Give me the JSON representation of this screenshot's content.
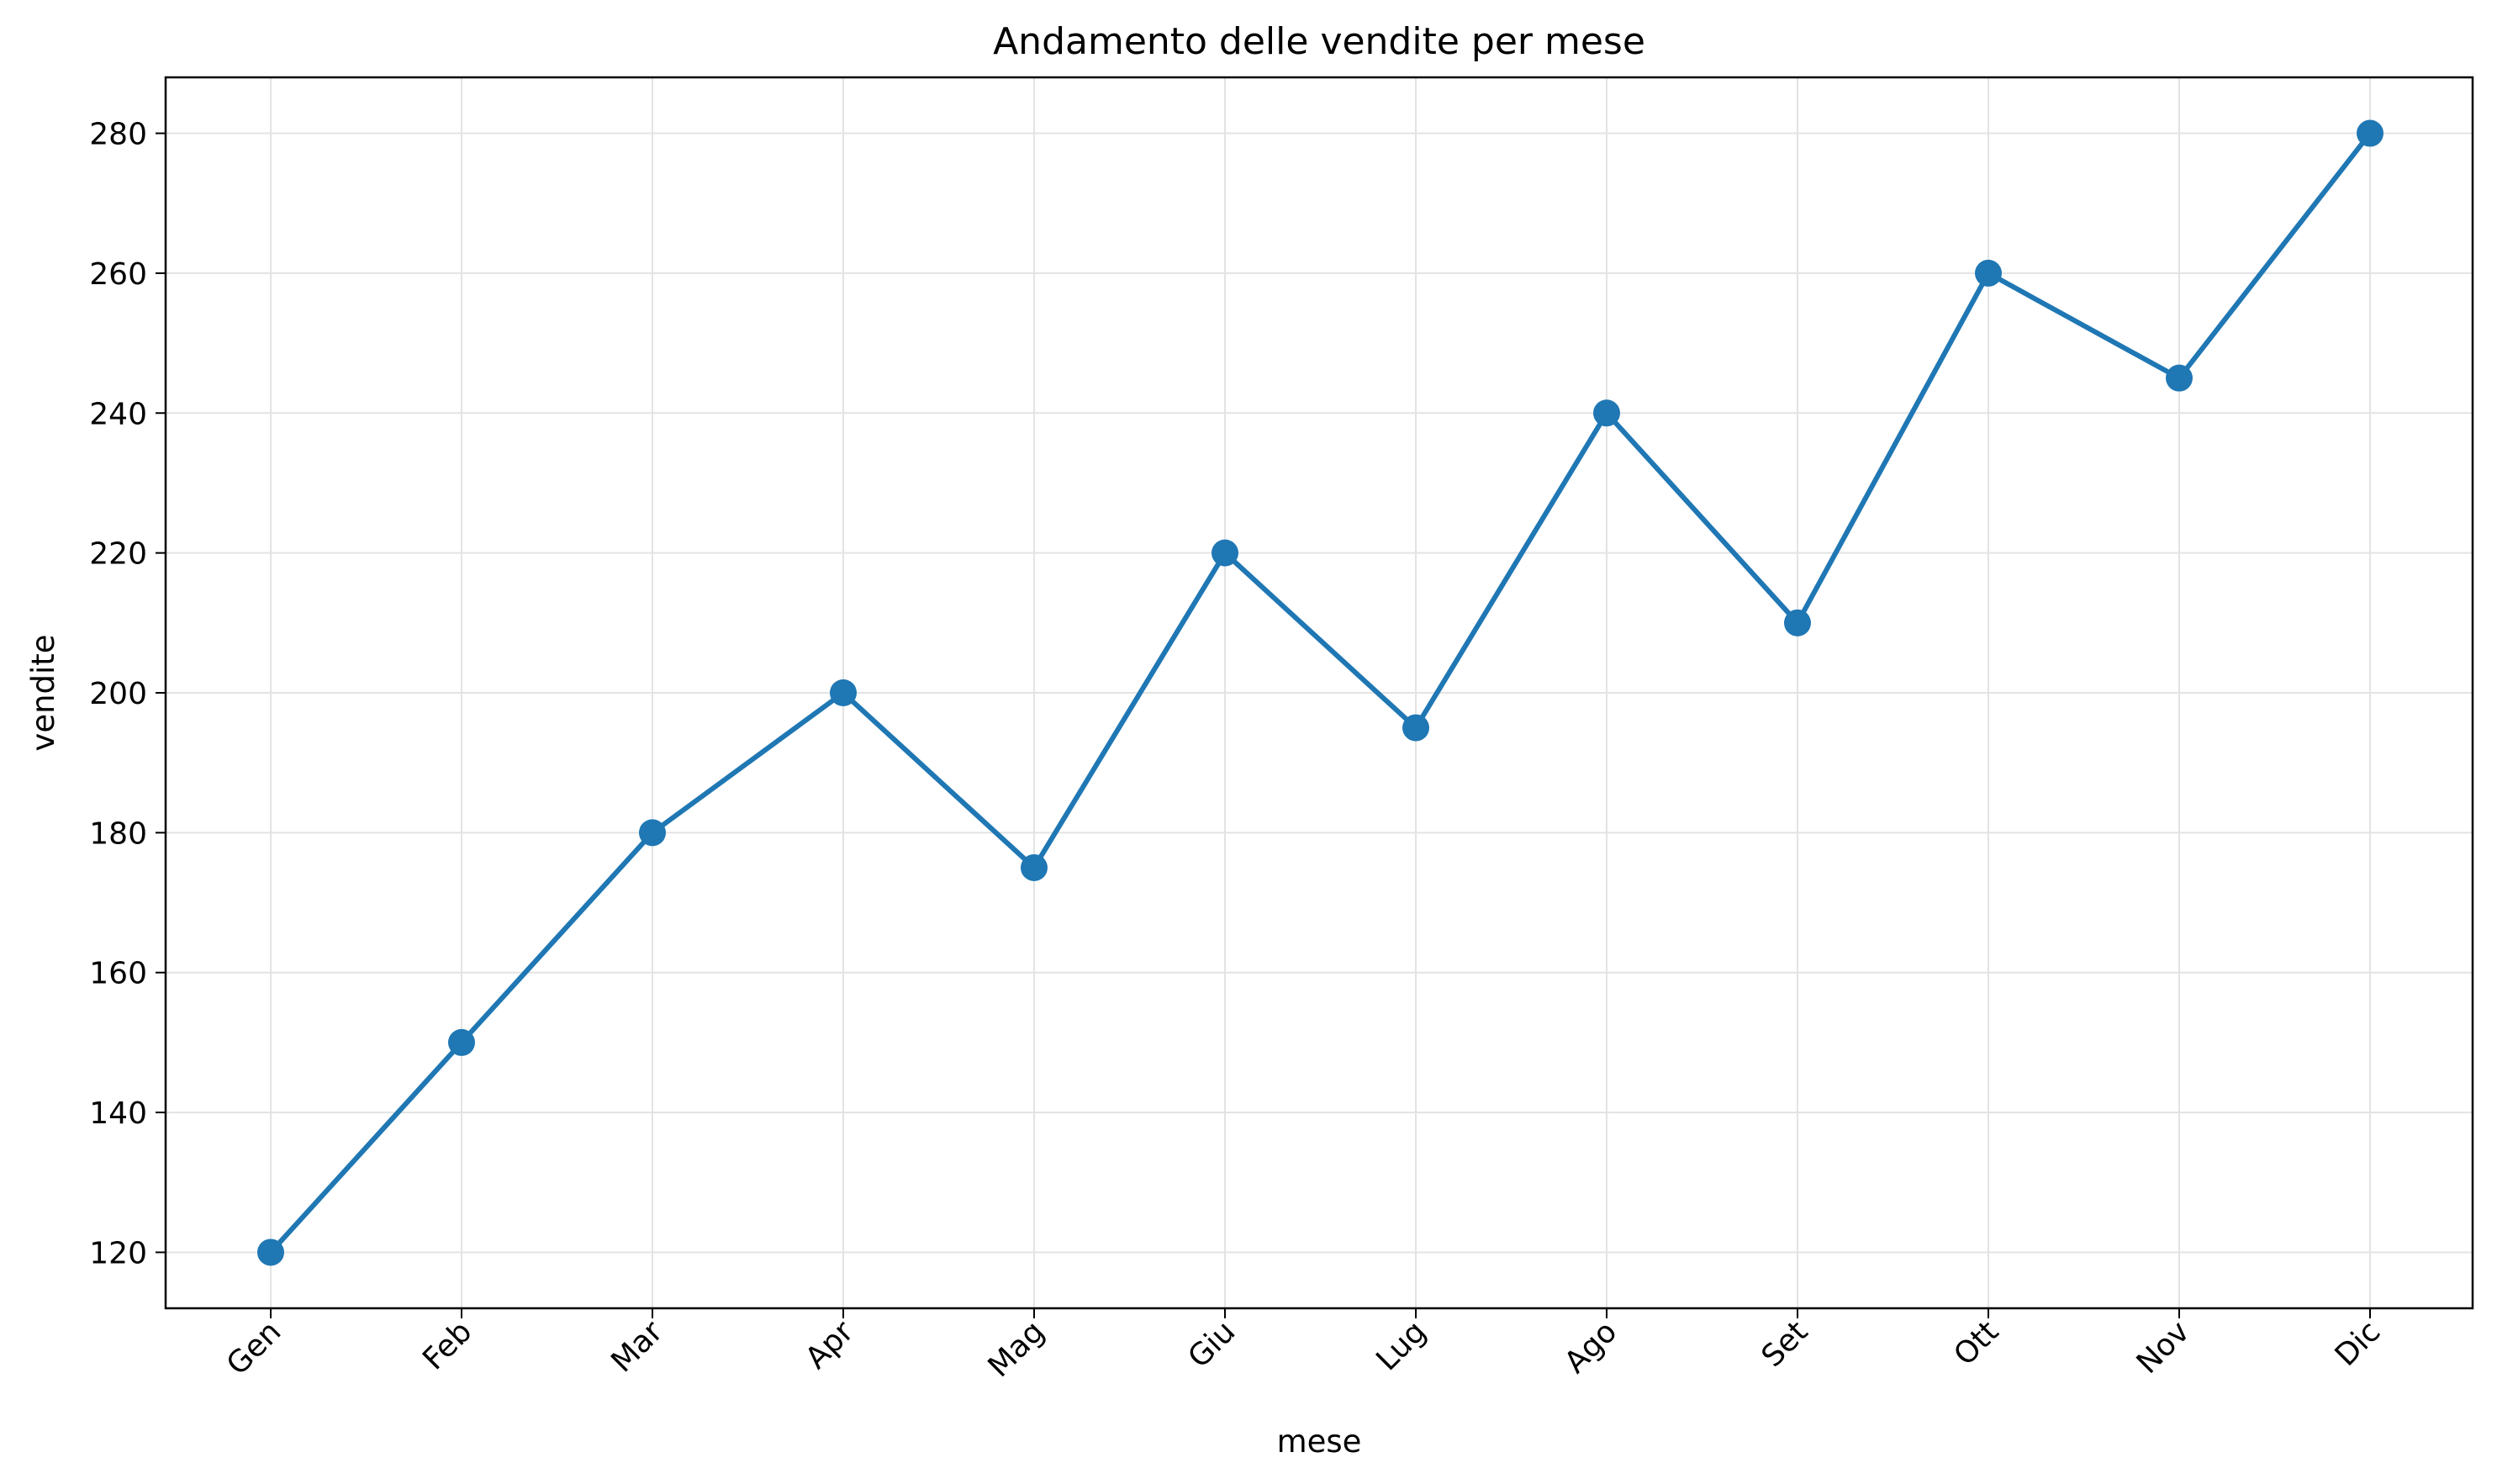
{
  "chart_data": {
    "type": "line",
    "title": "Andamento delle vendite per mese",
    "xlabel": "mese",
    "ylabel": "vendite",
    "categories": [
      "Gen",
      "Feb",
      "Mar",
      "Apr",
      "Mag",
      "Giu",
      "Lug",
      "Ago",
      "Set",
      "Ott",
      "Nov",
      "Dic"
    ],
    "series": [
      {
        "values": [
          120,
          150,
          180,
          200,
          175,
          220,
          195,
          240,
          210,
          260,
          245,
          280
        ]
      }
    ],
    "ylim": [
      112,
      288
    ],
    "yticks": [
      120,
      140,
      160,
      180,
      200,
      220,
      240,
      260,
      280
    ],
    "grid": true,
    "marker": "circle",
    "line_color": "#1f77b4",
    "grid_color": "#e3e3e3",
    "axis_color": "#000000"
  }
}
